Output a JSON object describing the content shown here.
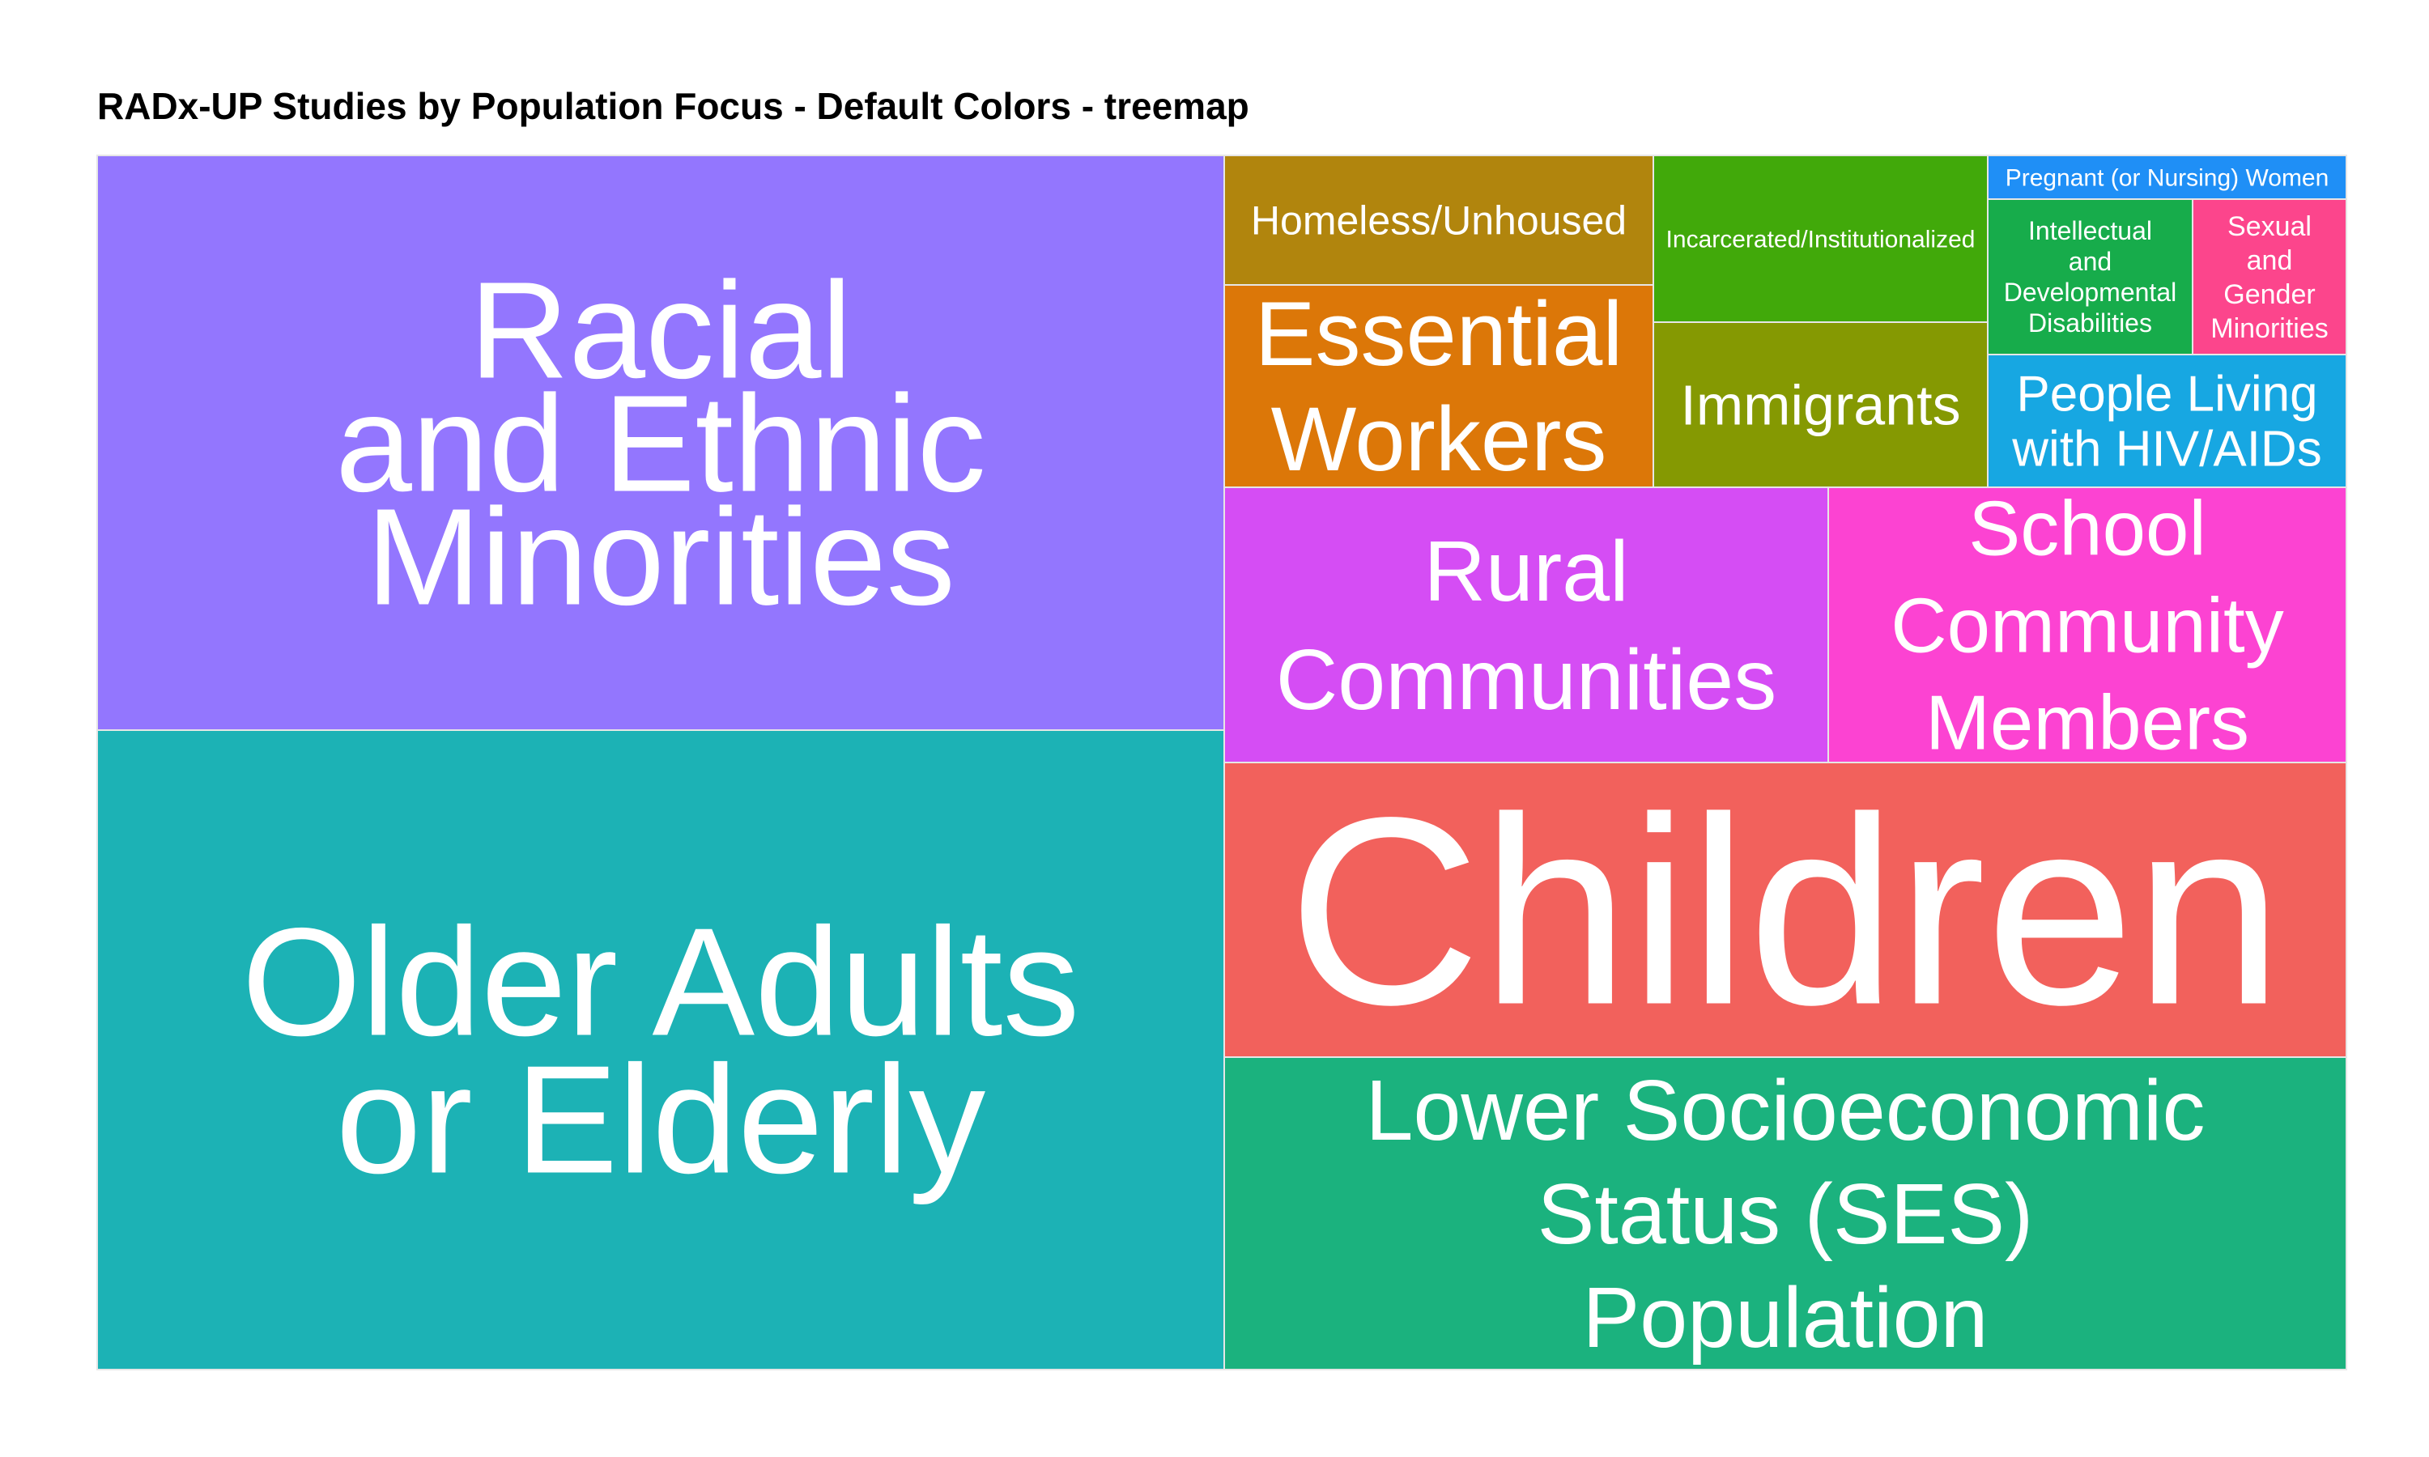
{
  "chart_data": {
    "type": "treemap",
    "title": "RADx-UP Studies by Population Focus - Default Colors - treemap",
    "tiles": [
      {
        "label": "Racial\nand Ethnic\nMinorities",
        "value": 40,
        "color": "#9376FE"
      },
      {
        "label": "Older Adults\nor Elderly",
        "value": 44,
        "color": "#1CB2B5"
      },
      {
        "label": "Children",
        "value": 22,
        "color": "#F2615C"
      },
      {
        "label": "Lower Socioeconomic\nStatus (SES)\nPopulation",
        "value": 23,
        "color": "#1BB27E"
      },
      {
        "label": "Rural\nCommunities",
        "value": 10.5,
        "color": "#D54DF4"
      },
      {
        "label": "School\nCommunity\nMembers",
        "value": 9,
        "color": "#FC43D2"
      },
      {
        "label": "Homeless/Unhoused",
        "value": 3.5,
        "color": "#B1850D"
      },
      {
        "label": "Essential\nWorkers",
        "value": 5.5,
        "color": "#DC7708"
      },
      {
        "label": "Incarcerated/Institutionalized",
        "value": 3.9,
        "color": "#41A90A"
      },
      {
        "label": "Immigrants",
        "value": 4.4,
        "color": "#859902"
      },
      {
        "label": "Pregnant (or Nursing) Women",
        "value": 0.9,
        "color": "#1F8FF6"
      },
      {
        "label": "Intellectual\nand\nDevelopmental\nDisabilities",
        "value": 2.0,
        "color": "#17AC4B"
      },
      {
        "label": "Sexual\nand\nGender\nMinorities",
        "value": 1.5,
        "color": "#FC458C"
      },
      {
        "label": "People Living\nwith HIV/AIDs",
        "value": 3.0,
        "color": "#17A7E2"
      }
    ],
    "text_color": "#FFFFFF",
    "border_color": "#E6E6E6"
  }
}
